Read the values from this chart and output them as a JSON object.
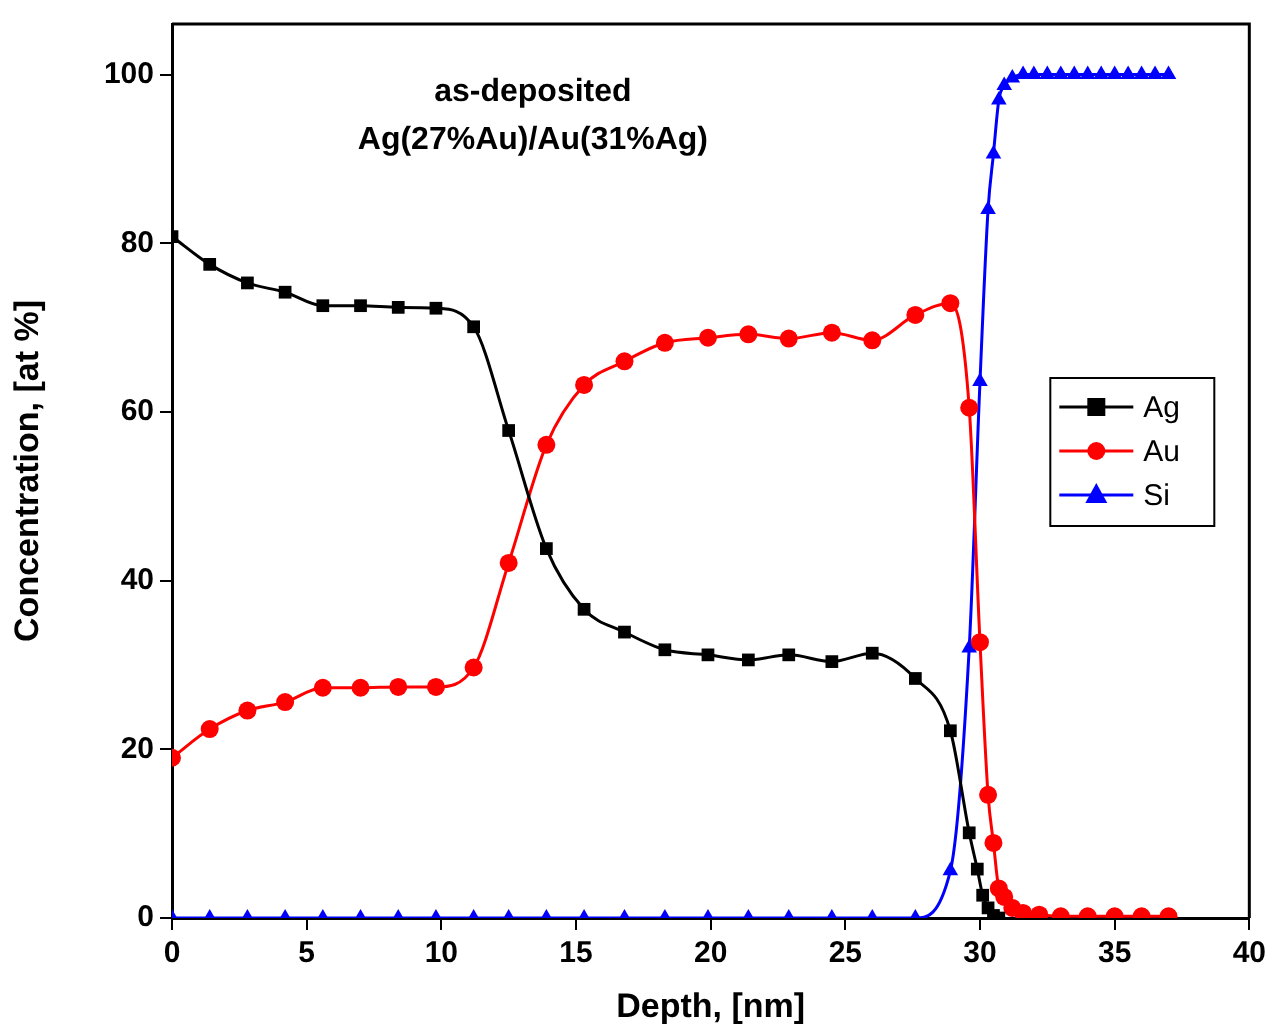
{
  "chart_data": {
    "type": "line",
    "xlabel": "Depth, [nm]",
    "ylabel": "Concentration, [at %]",
    "annotations": [
      "as-deposited",
      "Ag(27%Au)/Au(31%Ag)"
    ],
    "xlim": [
      0,
      40
    ],
    "xticks": [
      0,
      5,
      10,
      15,
      20,
      25,
      30,
      35,
      40
    ],
    "ylim": [
      0,
      106
    ],
    "yticks": [
      0,
      20,
      40,
      60,
      80,
      100
    ],
    "grid": false,
    "legend": "right",
    "line_style": "solid",
    "series": [
      {
        "name": "Ag",
        "color": "#000000",
        "marker": "square",
        "x": [
          0,
          1.4,
          2.8,
          4.2,
          5.6,
          7,
          8.4,
          9.8,
          11.2,
          12.5,
          13.9,
          15.3,
          16.8,
          18.3,
          19.9,
          21.4,
          22.9,
          24.5,
          26,
          27.6,
          28.9,
          29.6,
          29.9,
          30.1,
          30.3,
          30.5,
          30.7
        ],
        "values": [
          80.8,
          77.5,
          75.3,
          74.2,
          72.6,
          72.6,
          72.4,
          72.3,
          70.1,
          57.8,
          43.8,
          36.6,
          33.9,
          31.8,
          31.2,
          30.6,
          31.2,
          30.4,
          31.4,
          28.4,
          22.2,
          10.1,
          5.8,
          2.7,
          1.2,
          0.3,
          0
        ]
      },
      {
        "name": "Au",
        "color": "#ff0000",
        "marker": "circle",
        "x": [
          0,
          1.4,
          2.8,
          4.2,
          5.6,
          7,
          8.4,
          9.8,
          11.2,
          12.5,
          13.9,
          15.3,
          16.8,
          18.3,
          19.9,
          21.4,
          22.9,
          24.5,
          26,
          27.6,
          28.9,
          29.6,
          30,
          30.3,
          30.5,
          30.7,
          30.9,
          31.2,
          31.6,
          32.2,
          33,
          34,
          35,
          36,
          37
        ],
        "values": [
          19,
          22.4,
          24.6,
          25.6,
          27.3,
          27.3,
          27.4,
          27.4,
          29.7,
          42.1,
          56.1,
          63.2,
          66,
          68.2,
          68.8,
          69.2,
          68.7,
          69.4,
          68.5,
          71.5,
          72.9,
          60.5,
          32.7,
          14.6,
          8.9,
          3.5,
          2.5,
          1.2,
          0.6,
          0.4,
          0.2,
          0.2,
          0.2,
          0.2,
          0.2
        ]
      },
      {
        "name": "Si",
        "color": "#0000ff",
        "marker": "triangle",
        "x": [
          0,
          1.4,
          2.8,
          4.2,
          5.6,
          7,
          8.4,
          9.8,
          11.2,
          12.5,
          13.9,
          15.3,
          16.8,
          18.3,
          19.9,
          21.4,
          22.9,
          24.5,
          26,
          27.6,
          28.9,
          29.6,
          30,
          30.3,
          30.5,
          30.7,
          30.9,
          31.2,
          31.6,
          32,
          32.5,
          33,
          33.5,
          34,
          34.5,
          35,
          35.5,
          36,
          36.5,
          37
        ],
        "values": [
          0,
          0,
          0,
          0,
          0,
          0,
          0,
          0,
          0,
          0,
          0,
          0,
          0,
          0,
          0,
          0,
          0,
          0,
          0,
          0,
          5.6,
          32,
          63.6,
          84,
          90.6,
          97,
          98.7,
          99.6,
          100,
          100,
          100,
          100,
          100,
          100,
          100,
          100,
          100,
          100,
          100,
          100
        ]
      }
    ]
  }
}
